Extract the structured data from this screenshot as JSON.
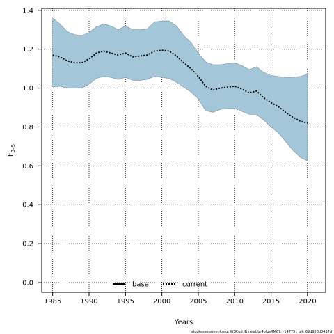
{
  "chart_data": {
    "type": "area",
    "xlabel": "Years",
    "ylabel": "F̄",
    "ylabel_subscript": "3–5",
    "xlim": [
      1983.5,
      2022.5
    ],
    "ylim": [
      -0.05,
      1.41
    ],
    "xticks": [
      1985,
      1990,
      1995,
      2000,
      2005,
      2010,
      2015,
      2020
    ],
    "yticks": [
      0.0,
      0.2,
      0.4,
      0.6,
      0.8,
      1.0,
      1.2,
      1.4
    ],
    "ytick_labels": [
      "0.0",
      "0.2",
      "0.4",
      "0.6",
      "0.8",
      "1.0",
      "1.2",
      "1.4"
    ],
    "grid": true,
    "legend_position": "bottom-center",
    "x": [
      1985,
      1986,
      1987,
      1988,
      1989,
      1990,
      1991,
      1992,
      1993,
      1994,
      1995,
      1996,
      1997,
      1998,
      1999,
      2000,
      2001,
      2002,
      2003,
      2004,
      2005,
      2006,
      2007,
      2008,
      2009,
      2010,
      2011,
      2012,
      2013,
      2014,
      2015,
      2016,
      2017,
      2018,
      2019,
      2020
    ],
    "series": [
      {
        "name": "current",
        "style": "dotted",
        "color": "#000000",
        "values": [
          1.17,
          1.16,
          1.14,
          1.13,
          1.13,
          1.15,
          1.18,
          1.19,
          1.18,
          1.17,
          1.18,
          1.16,
          1.165,
          1.17,
          1.19,
          1.195,
          1.19,
          1.165,
          1.13,
          1.1,
          1.06,
          1.01,
          0.99,
          1.0,
          1.005,
          1.01,
          0.995,
          0.975,
          0.985,
          0.95,
          0.925,
          0.905,
          0.875,
          0.85,
          0.83,
          0.82
        ]
      }
    ],
    "confidence_band": {
      "color": "#a3c6d8",
      "edge_color": "#7f98a8",
      "upper": [
        1.36,
        1.33,
        1.29,
        1.275,
        1.27,
        1.285,
        1.315,
        1.33,
        1.32,
        1.3,
        1.32,
        1.3,
        1.3,
        1.305,
        1.34,
        1.345,
        1.345,
        1.32,
        1.27,
        1.235,
        1.18,
        1.135,
        1.12,
        1.12,
        1.125,
        1.13,
        1.115,
        1.095,
        1.11,
        1.08,
        1.065,
        1.06,
        1.055,
        1.055,
        1.06,
        1.07
      ],
      "lower": [
        1.005,
        1.01,
        1.0,
        1.0,
        1.0,
        1.02,
        1.05,
        1.06,
        1.055,
        1.045,
        1.055,
        1.04,
        1.04,
        1.045,
        1.06,
        1.055,
        1.05,
        1.03,
        1.005,
        0.98,
        0.945,
        0.885,
        0.875,
        0.89,
        0.895,
        0.895,
        0.88,
        0.865,
        0.865,
        0.835,
        0.8,
        0.77,
        0.725,
        0.68,
        0.645,
        0.625
      ]
    },
    "legend": [
      {
        "label": "base",
        "style": "solid",
        "color": "#000000"
      },
      {
        "label": "current",
        "style": "dotted",
        "color": "#000000"
      }
    ]
  },
  "footer_text": "stockassessment.org, WBCod IB newbbr4plusRM67, r14775 , git: 69d926d0437d"
}
